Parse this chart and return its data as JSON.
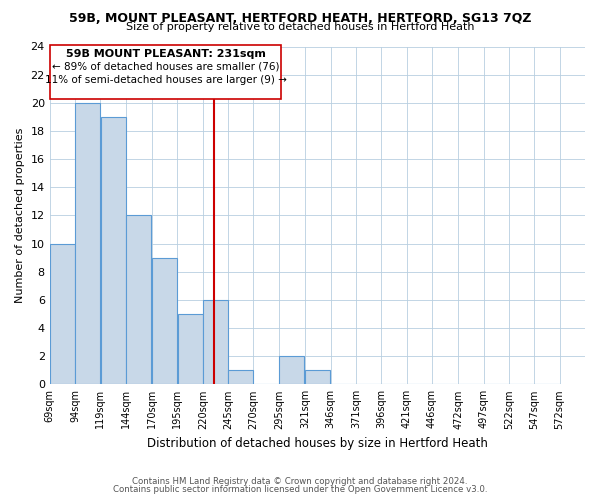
{
  "title": "59B, MOUNT PLEASANT, HERTFORD HEATH, HERTFORD, SG13 7QZ",
  "subtitle": "Size of property relative to detached houses in Hertford Heath",
  "xlabel": "Distribution of detached houses by size in Hertford Heath",
  "ylabel": "Number of detached properties",
  "bar_values": [
    10,
    20,
    19,
    12,
    9,
    5,
    6,
    1,
    0,
    2,
    1,
    0,
    0,
    0,
    0,
    0,
    0,
    0,
    0,
    0
  ],
  "bin_labels": [
    "69sqm",
    "94sqm",
    "119sqm",
    "144sqm",
    "170sqm",
    "195sqm",
    "220sqm",
    "245sqm",
    "270sqm",
    "295sqm",
    "321sqm",
    "346sqm",
    "371sqm",
    "396sqm",
    "421sqm",
    "446sqm",
    "472sqm",
    "497sqm",
    "522sqm",
    "547sqm",
    "572sqm"
  ],
  "bin_edges": [
    69,
    94,
    119,
    144,
    170,
    195,
    220,
    245,
    270,
    295,
    321,
    346,
    371,
    396,
    421,
    446,
    472,
    497,
    522,
    547,
    572
  ],
  "bar_color": "#c8d8e8",
  "bar_edge_color": "#5b9bd5",
  "property_size": 231,
  "vline_color": "#cc0000",
  "ylim": [
    0,
    24
  ],
  "yticks": [
    0,
    2,
    4,
    6,
    8,
    10,
    12,
    14,
    16,
    18,
    20,
    22,
    24
  ],
  "annotation_line1": "59B MOUNT PLEASANT: 231sqm",
  "annotation_line2": "← 89% of detached houses are smaller (76)",
  "annotation_line3": "11% of semi-detached houses are larger (9) →",
  "footer_line1": "Contains HM Land Registry data © Crown copyright and database right 2024.",
  "footer_line2": "Contains public sector information licensed under the Open Government Licence v3.0."
}
